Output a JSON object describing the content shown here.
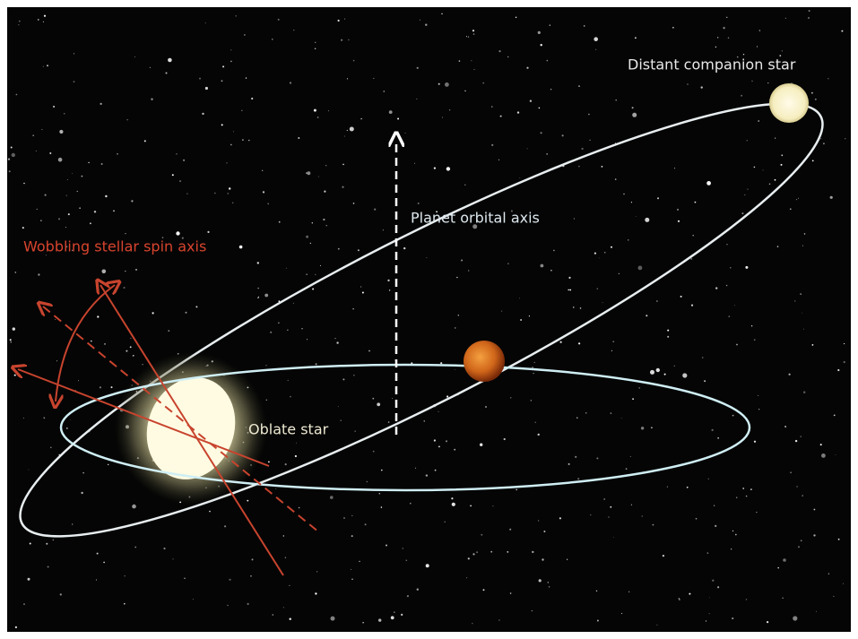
{
  "labels": {
    "companion": "Distant companion star",
    "orbital_axis": "Planet orbital axis",
    "spin_axis": "Wobbling stellar spin axis",
    "oblate": "Oblate star"
  }
}
